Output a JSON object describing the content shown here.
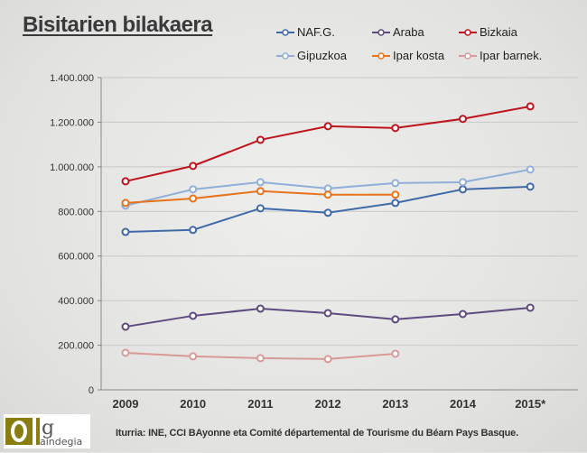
{
  "chart_data": {
    "type": "line",
    "title": "Bisitarien bilakaera",
    "xlabel": "",
    "ylabel": "",
    "categories": [
      "2009",
      "2010",
      "2011",
      "2012",
      "2013",
      "2014",
      "2015*"
    ],
    "ylim": [
      0,
      1400000
    ],
    "yticks": [
      0,
      200000,
      400000,
      600000,
      800000,
      1000000,
      1200000,
      1400000
    ],
    "ytick_labels": [
      "0",
      "200.000",
      "400.000",
      "600.000",
      "800.000",
      "1.000.000",
      "1.200.000",
      "1.400.000"
    ],
    "grid": true,
    "legend_position": "top",
    "series": [
      {
        "name": "NAF.G.",
        "color": "#3e6aa8",
        "values": [
          708000,
          717000,
          814000,
          794000,
          838000,
          899000,
          911000
        ]
      },
      {
        "name": "Araba",
        "color": "#5e4a7e",
        "values": [
          283000,
          332000,
          364000,
          344000,
          316000,
          340000,
          368000
        ]
      },
      {
        "name": "Bizkaia",
        "color": "#c0141c",
        "values": [
          935000,
          1004000,
          1121000,
          1182000,
          1174000,
          1215000,
          1271000
        ]
      },
      {
        "name": "Gipuzkoa",
        "color": "#8fafd8",
        "values": [
          826000,
          899000,
          931000,
          903000,
          927000,
          931000,
          988000
        ]
      },
      {
        "name": "Ipar kosta",
        "color": "#e8731a",
        "values": [
          838000,
          858000,
          891000,
          875000,
          875000,
          null,
          null
        ]
      },
      {
        "name": "Ipar barnek.",
        "color": "#d89a98",
        "values": [
          166000,
          150000,
          142000,
          138000,
          162000,
          null,
          null
        ]
      }
    ]
  },
  "footer": {
    "source": "Iturria: INE, CCI BAyonne eta Comité départemental de Tourisme du Béarn Pays Basque.",
    "logo_text": "gaindegia"
  }
}
